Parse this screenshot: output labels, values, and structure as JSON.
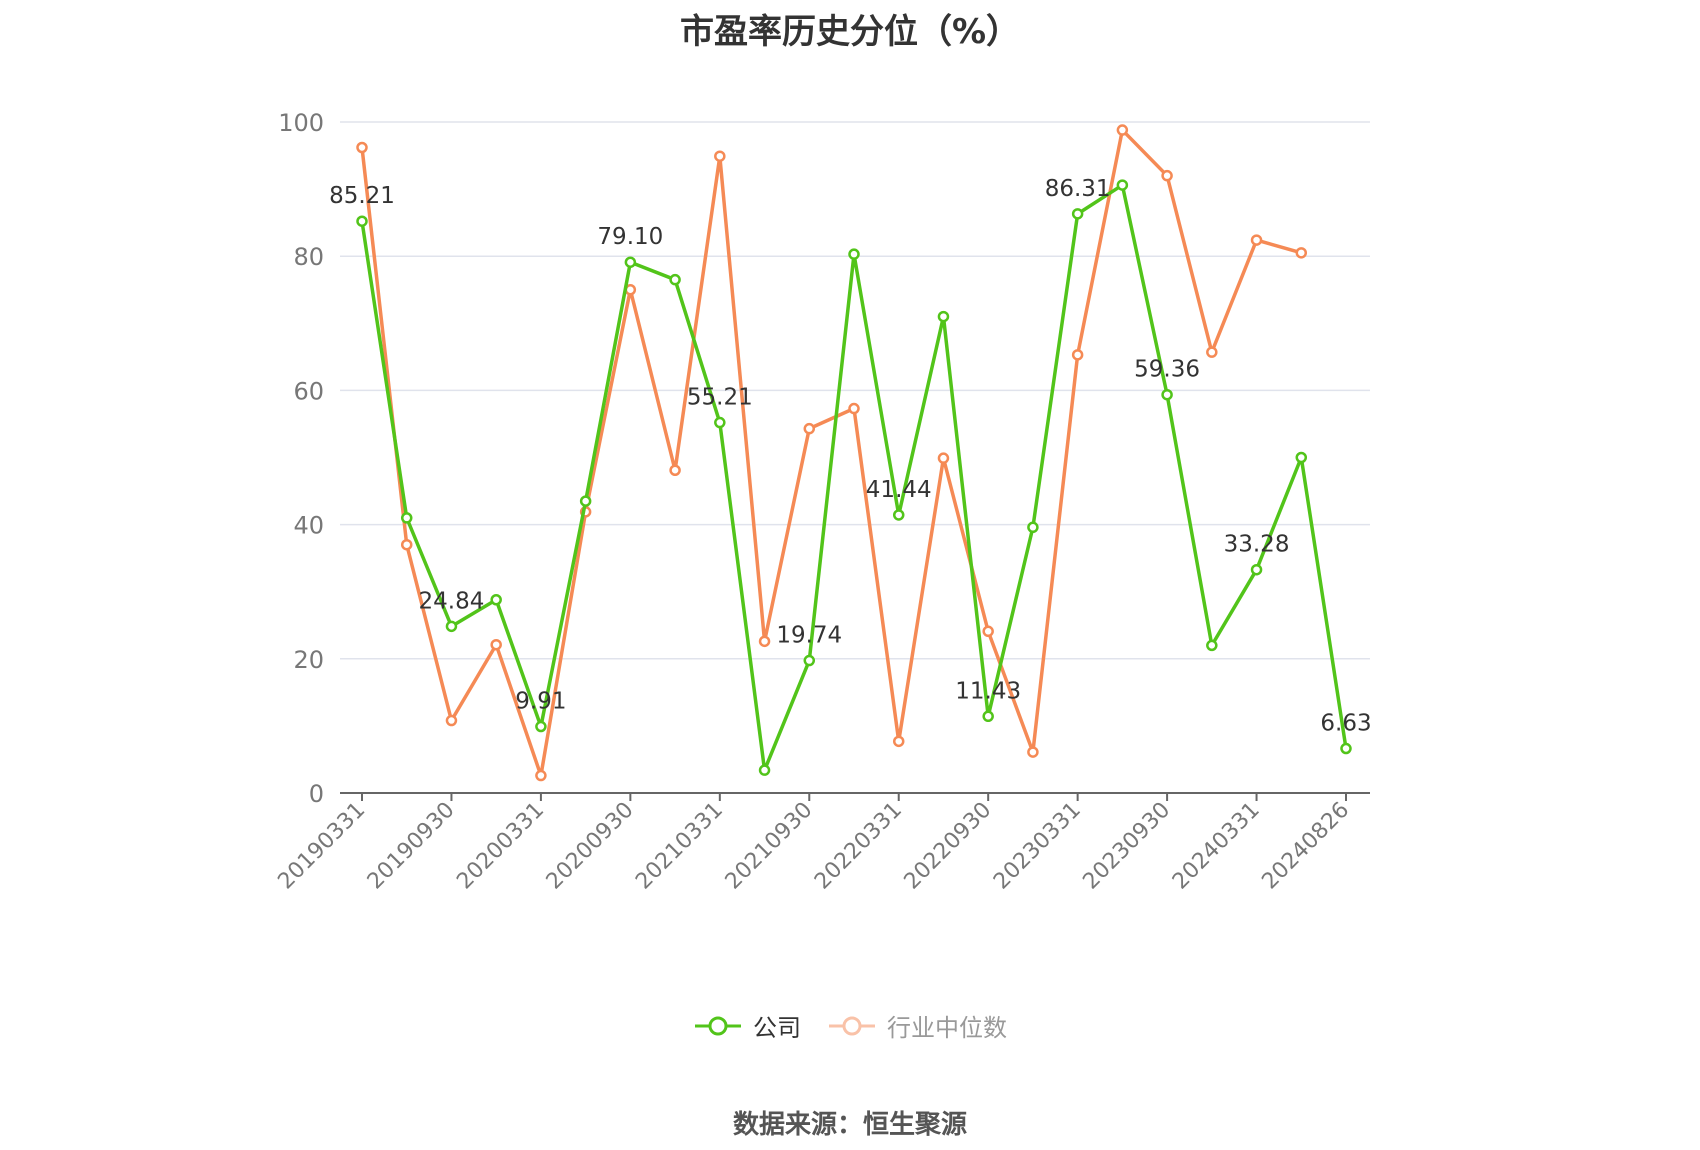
{
  "chart_data": {
    "type": "line",
    "title": "市盈率历史分位（%）",
    "source": "数据来源：恒生聚源",
    "xlabel": "",
    "ylabel": "",
    "ylim": [
      0,
      100
    ],
    "yticks": [
      0,
      20,
      40,
      60,
      80,
      100
    ],
    "grid": true,
    "legend_position": "bottom",
    "tick_labels": [
      "20190331",
      "20190930",
      "20200331",
      "20200930",
      "20210331",
      "20210930",
      "20220331",
      "20220930",
      "20230331",
      "20230930",
      "20240331",
      "20240826"
    ],
    "x": [
      "20190331",
      "20190630",
      "20190930",
      "20191231",
      "20200331",
      "20200630",
      "20200930",
      "20201231",
      "20210331",
      "20210630",
      "20210930",
      "20211231",
      "20220331",
      "20220630",
      "20220930",
      "20221231",
      "20230331",
      "20230630",
      "20230930",
      "20231231",
      "20240331",
      "20240630",
      "20240826"
    ],
    "series": [
      {
        "name": "公司",
        "color": "#52c41a",
        "values": [
          85.21,
          41.0,
          24.84,
          28.8,
          9.91,
          43.5,
          79.1,
          76.5,
          55.21,
          3.4,
          19.74,
          80.3,
          41.44,
          71.0,
          11.43,
          39.6,
          86.31,
          90.6,
          59.36,
          22.0,
          33.28,
          50.0,
          6.63
        ],
        "labels": {
          "0": "85.21",
          "2": "24.84",
          "4": "9.91",
          "6": "79.10",
          "8": "55.21",
          "10": "19.74",
          "12": "41.44",
          "14": "11.43",
          "16": "86.31",
          "18": "59.36",
          "20": "33.28",
          "22": "6.63"
        }
      },
      {
        "name": "行业中位数",
        "color": "#f58a55",
        "values": [
          96.2,
          37.0,
          10.8,
          22.1,
          2.6,
          41.9,
          75.0,
          48.1,
          94.9,
          22.6,
          54.3,
          57.3,
          7.7,
          49.9,
          24.1,
          6.1,
          65.3,
          98.8,
          92.0,
          65.7,
          82.4,
          80.5,
          null
        ]
      }
    ]
  }
}
